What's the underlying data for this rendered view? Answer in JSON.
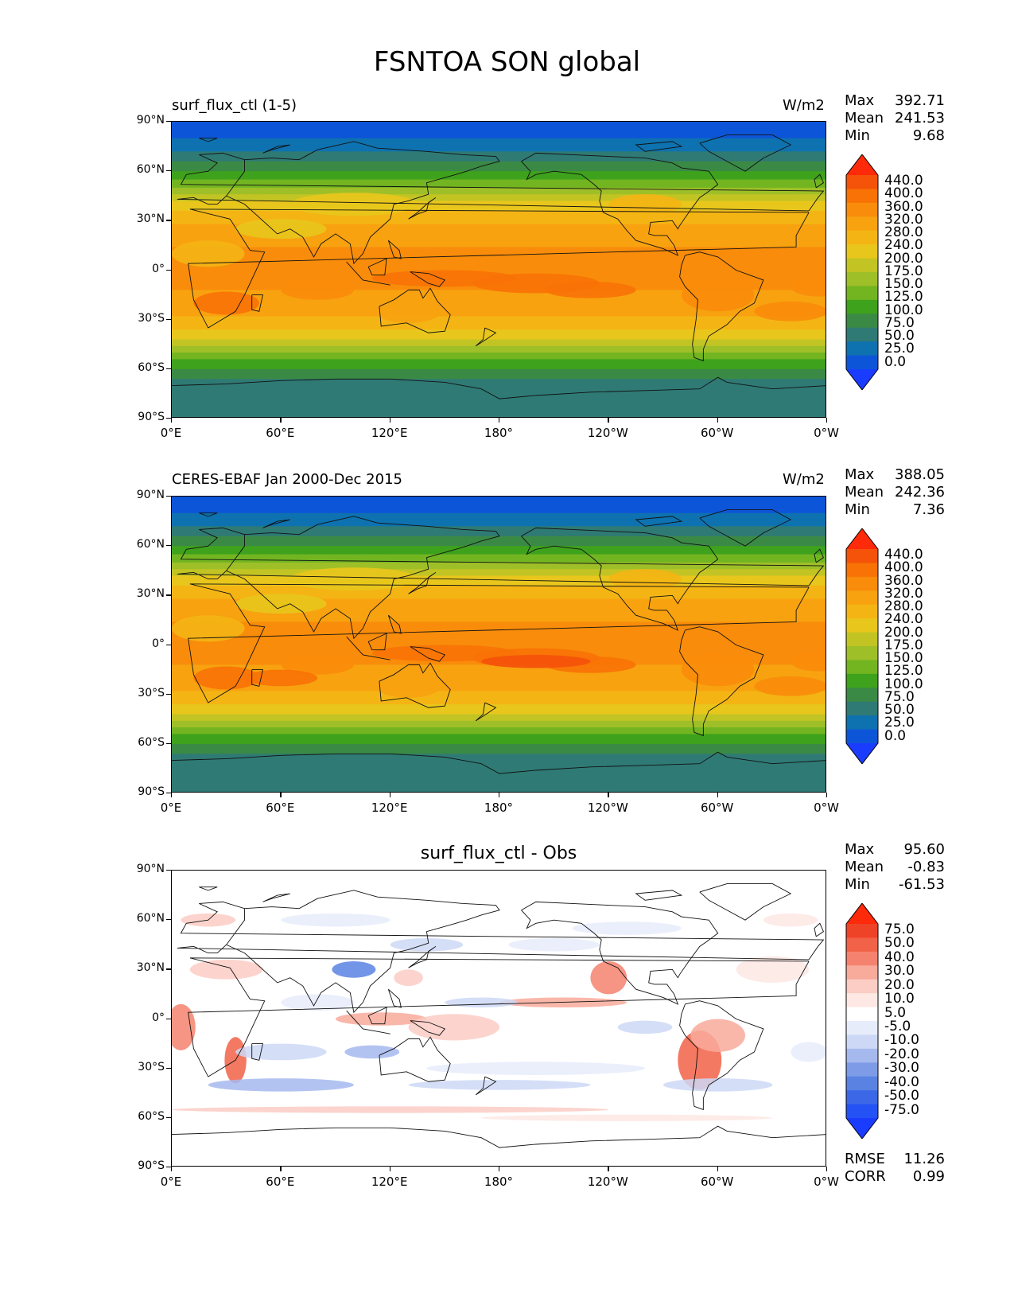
{
  "figure_title": "FSNTOA SON global",
  "lat_ticks": [
    "90°N",
    "60°N",
    "30°N",
    "0°",
    "30°S",
    "60°S",
    "90°S"
  ],
  "lon_ticks": [
    "0°E",
    "60°E",
    "120°E",
    "180°",
    "120°W",
    "60°W",
    "0°W"
  ],
  "panels": [
    {
      "title": "surf_flux_ctl (1-5)",
      "units": "W/m2",
      "stats": [
        {
          "label": "Max",
          "value": "392.71"
        },
        {
          "label": "Mean",
          "value": "241.53"
        },
        {
          "label": "Min",
          "value": "9.68"
        }
      ],
      "colorbar_labels": [
        "440.0",
        "400.0",
        "360.0",
        "320.0",
        "280.0",
        "240.0",
        "200.0",
        "175.0",
        "150.0",
        "125.0",
        "100.0",
        "75.0",
        "50.0",
        "25.0",
        "0.0"
      ]
    },
    {
      "title": "CERES-EBAF Jan 2000-Dec 2015",
      "units": "W/m2",
      "stats": [
        {
          "label": "Max",
          "value": "388.05"
        },
        {
          "label": "Mean",
          "value": "242.36"
        },
        {
          "label": "Min",
          "value": "7.36"
        }
      ],
      "colorbar_labels": [
        "440.0",
        "400.0",
        "360.0",
        "320.0",
        "280.0",
        "240.0",
        "200.0",
        "175.0",
        "150.0",
        "125.0",
        "100.0",
        "75.0",
        "50.0",
        "25.0",
        "0.0"
      ]
    },
    {
      "title": "surf_flux_ctl - Obs",
      "units": "",
      "stats": [
        {
          "label": "Max",
          "value": "95.60"
        },
        {
          "label": "Mean",
          "value": "-0.83"
        },
        {
          "label": "Min",
          "value": "-61.53"
        }
      ],
      "colorbar_labels": [
        "75.0",
        "50.0",
        "40.0",
        "30.0",
        "20.0",
        "10.0",
        "5.0",
        "-5.0",
        "-10.0",
        "-20.0",
        "-30.0",
        "-40.0",
        "-50.0",
        "-75.0"
      ],
      "extra_stats": [
        {
          "label": "RMSE",
          "value": "11.26"
        },
        {
          "label": "CORR",
          "value": "0.99"
        }
      ]
    }
  ],
  "colors": {
    "seq": [
      "#1a3cff",
      "#0d55d8",
      "#0e72b0",
      "#2f7a75",
      "#3a8a45",
      "#3ea21c",
      "#72b521",
      "#9ebf28",
      "#c2c424",
      "#e8c61c",
      "#f4b514",
      "#f8a210",
      "#f98c0a",
      "#f87205",
      "#f5520a",
      "#ff2a0a"
    ],
    "div": [
      "#1a3cff",
      "#2452f5",
      "#3c68e8",
      "#5a82e3",
      "#7d9be6",
      "#a6b9ee",
      "#ccd8f6",
      "#e7ecfb",
      "#ffffff",
      "#fde8e4",
      "#fbcdc4",
      "#f8aa9b",
      "#f5826e",
      "#f26248",
      "#ef4328",
      "#ff2a0a"
    ]
  }
}
